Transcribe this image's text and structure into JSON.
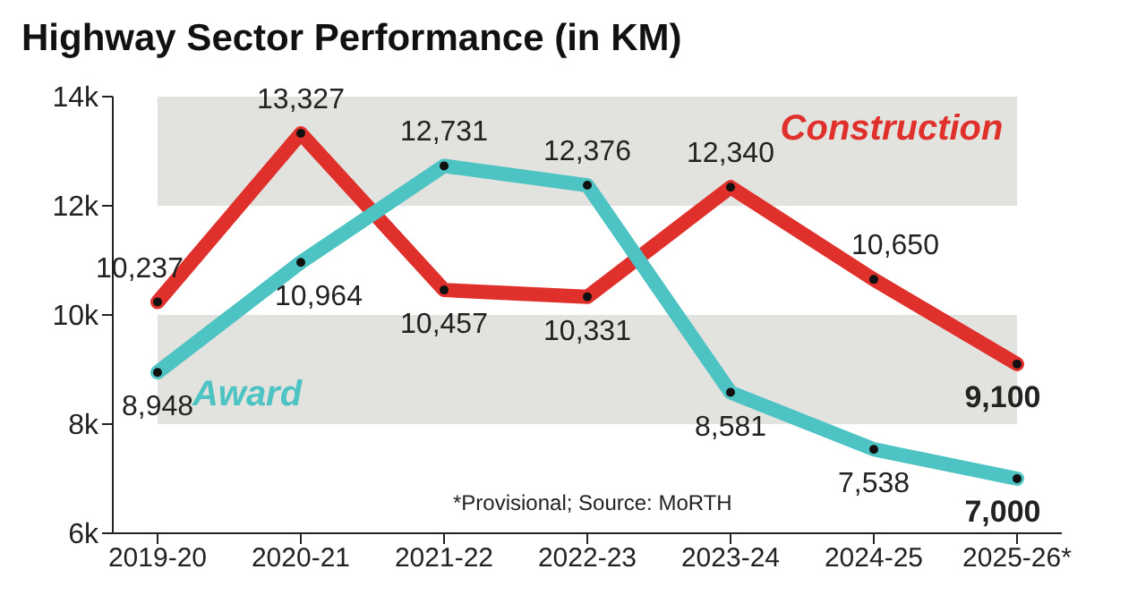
{
  "chart_data": {
    "type": "line",
    "title": "Highway Sector Performance (in KM)",
    "categories": [
      "2019-20",
      "2020-21",
      "2021-22",
      "2022-23",
      "2023-24",
      "2024-25",
      "2025-26*"
    ],
    "series": [
      {
        "name": "Construction",
        "color": "#e0302c",
        "values": [
          10237,
          13327,
          10457,
          10331,
          12340,
          10650,
          9100
        ],
        "value_labels": [
          "10,237",
          "13,327",
          "10,457",
          "10,331",
          "12,340",
          "10,650",
          "9,100"
        ]
      },
      {
        "name": "Award",
        "color": "#4ec3c3",
        "values": [
          8948,
          10964,
          12731,
          12376,
          8581,
          7538,
          7000
        ],
        "value_labels": [
          "8,948",
          "10,964",
          "12,731",
          "12,376",
          "8,581",
          "7,538",
          "7,000"
        ]
      }
    ],
    "ylim": [
      6000,
      14000
    ],
    "yticks": [
      {
        "value": 6000,
        "label": "6k"
      },
      {
        "value": 8000,
        "label": "8k"
      },
      {
        "value": 10000,
        "label": "10k"
      },
      {
        "value": 12000,
        "label": "12k"
      },
      {
        "value": 14000,
        "label": "14k"
      }
    ],
    "bands": [
      {
        "axis": "y",
        "from": 8000,
        "to": 10000,
        "color": "#e2e2de"
      },
      {
        "axis": "y",
        "from": 12000,
        "to": 14000,
        "color": "#e2e2de"
      }
    ],
    "marker": "circle",
    "line_style": "solid",
    "legend": false,
    "annotations": [
      "*Provisional; Source: MoRTH"
    ]
  }
}
